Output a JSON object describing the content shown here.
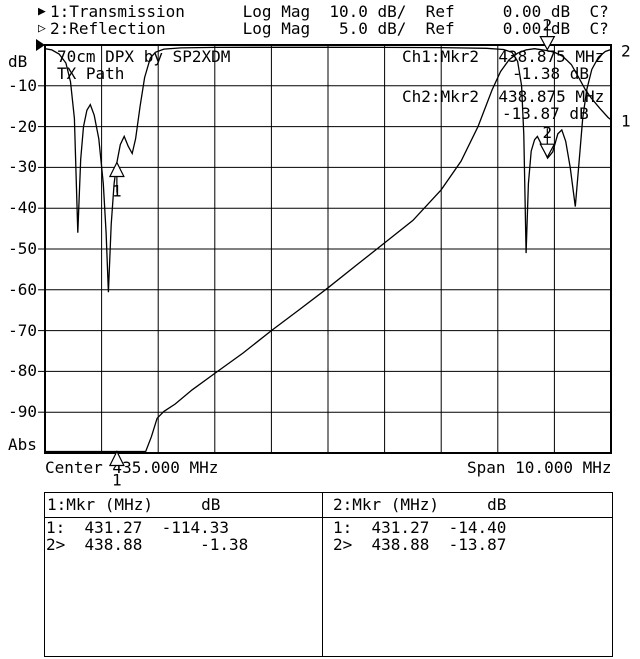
{
  "header": {
    "line1": {
      "indicator": "▶",
      "text": "1:Transmission      Log Mag  10.0 dB/  Ref     0.00 dB  C?"
    },
    "line2": {
      "indicator": "▷",
      "text": "2:Reflection        Log Mag   5.0 dB/  Ref     0.00 dB  C?"
    }
  },
  "plot": {
    "y_unit": "dB",
    "y_bottom": "Abs",
    "center_label": "Center 435.000 MHz",
    "span_label": "Span 10.000 MHz",
    "title_line1": "70cm DPX by SP2XDM",
    "title_line2": "TX Path",
    "ch1_readout_line1": "Ch1:Mkr2  438.875 MHz",
    "ch1_readout_line2": "-1.38 dB",
    "ch2_readout_line1": "Ch2:Mkr2  438.875 MHz",
    "ch2_readout_line2": "-13.87 dB"
  },
  "tables": {
    "left": {
      "header": "1:Mkr (MHz)     dB",
      "rows": [
        "1:  431.27  -114.33",
        "2>  438.88      -1.38"
      ]
    },
    "right": {
      "header": "2:Mkr (MHz)     dB",
      "rows": [
        "1:  431.27  -14.40",
        "2>  438.88  -13.87"
      ]
    }
  },
  "chart_data": {
    "type": "line",
    "title": "70cm DPX by SP2XDM",
    "subtitle": "TX Path",
    "x_axis": {
      "min": 430.0,
      "max": 440.0,
      "center_mhz": 435.0,
      "span_mhz": 10.0,
      "divisions": 10
    },
    "y_axis": {
      "unit": "dB",
      "divisions": 10,
      "tick_labels": [
        "-10",
        "-20",
        "-30",
        "-40",
        "-50",
        "-60",
        "-70",
        "-80",
        "-90"
      ],
      "bottom_label": "Abs"
    },
    "series": [
      {
        "name": "Transmission",
        "channel": 1,
        "trace_label": "1",
        "scale_db_per_div": 10,
        "ref_db": 0,
        "markers": [
          {
            "n": 1,
            "freq_mhz": 431.27,
            "db": -114.33,
            "clipped": true
          },
          {
            "n": 2,
            "freq_mhz": 438.875,
            "db": -1.38
          }
        ],
        "points": [
          [
            430.0,
            -114
          ],
          [
            431.55,
            -114
          ],
          [
            431.68,
            -110
          ],
          [
            431.78,
            -103
          ],
          [
            431.88,
            -96
          ],
          [
            431.98,
            -91.5
          ],
          [
            432.1,
            -89.8
          ],
          [
            432.3,
            -88
          ],
          [
            432.6,
            -84.5
          ],
          [
            433.0,
            -80.5
          ],
          [
            433.5,
            -75.5
          ],
          [
            434.0,
            -70
          ],
          [
            434.5,
            -64.8
          ],
          [
            435.0,
            -59.5
          ],
          [
            435.5,
            -54
          ],
          [
            436.0,
            -48.5
          ],
          [
            436.5,
            -43
          ],
          [
            437.0,
            -35.5
          ],
          [
            437.35,
            -28.5
          ],
          [
            437.65,
            -20
          ],
          [
            437.9,
            -11
          ],
          [
            438.05,
            -6.5
          ],
          [
            438.2,
            -3.6
          ],
          [
            438.35,
            -2.0
          ],
          [
            438.5,
            -1.2
          ],
          [
            438.65,
            -0.9
          ],
          [
            438.875,
            -1.38
          ],
          [
            439.0,
            -1.8
          ],
          [
            439.15,
            -2.8
          ],
          [
            439.3,
            -4.8
          ],
          [
            439.45,
            -8.5
          ],
          [
            439.55,
            -11
          ],
          [
            439.65,
            -13
          ],
          [
            439.8,
            -15.5
          ],
          [
            439.95,
            -17.8
          ],
          [
            440.0,
            -18.3
          ]
        ]
      },
      {
        "name": "Reflection",
        "channel": 2,
        "trace_label": "2",
        "scale_db_per_div": 5,
        "ref_db": 0,
        "markers": [
          {
            "n": 1,
            "freq_mhz": 431.27,
            "db": -14.4
          },
          {
            "n": 2,
            "freq_mhz": 438.875,
            "db": -13.87
          }
        ],
        "points": [
          [
            430.0,
            -0.45
          ],
          [
            430.12,
            -0.6
          ],
          [
            430.25,
            -1.1
          ],
          [
            430.37,
            -2.2
          ],
          [
            430.45,
            -4.5
          ],
          [
            430.52,
            -9
          ],
          [
            430.58,
            -23
          ],
          [
            430.63,
            -14
          ],
          [
            430.68,
            -10
          ],
          [
            430.74,
            -8
          ],
          [
            430.8,
            -7.3
          ],
          [
            430.87,
            -8.6
          ],
          [
            430.95,
            -11.5
          ],
          [
            431.03,
            -17
          ],
          [
            431.08,
            -23
          ],
          [
            431.12,
            -30.3
          ],
          [
            431.17,
            -22
          ],
          [
            431.22,
            -17
          ],
          [
            431.27,
            -14.4
          ],
          [
            431.33,
            -12.2
          ],
          [
            431.4,
            -11.2
          ],
          [
            431.47,
            -12.4
          ],
          [
            431.54,
            -13.3
          ],
          [
            431.6,
            -11.5
          ],
          [
            431.68,
            -7.5
          ],
          [
            431.76,
            -4
          ],
          [
            431.86,
            -1.6
          ],
          [
            431.95,
            -0.9
          ],
          [
            432.1,
            -0.5
          ],
          [
            432.4,
            -0.35
          ],
          [
            433.0,
            -0.3
          ],
          [
            434.0,
            -0.28
          ],
          [
            435.0,
            -0.28
          ],
          [
            436.0,
            -0.3
          ],
          [
            437.0,
            -0.32
          ],
          [
            437.8,
            -0.4
          ],
          [
            438.1,
            -0.55
          ],
          [
            438.25,
            -0.9
          ],
          [
            438.35,
            -2
          ],
          [
            438.42,
            -5
          ],
          [
            438.46,
            -11
          ],
          [
            438.5,
            -25.5
          ],
          [
            438.54,
            -17
          ],
          [
            438.59,
            -13
          ],
          [
            438.65,
            -11.6
          ],
          [
            438.7,
            -11.2
          ],
          [
            438.78,
            -12.3
          ],
          [
            438.88,
            -13.87
          ],
          [
            438.97,
            -13.1
          ],
          [
            439.06,
            -10.9
          ],
          [
            439.13,
            -10.4
          ],
          [
            439.2,
            -11.8
          ],
          [
            439.28,
            -15
          ],
          [
            439.37,
            -19.8
          ],
          [
            439.44,
            -14
          ],
          [
            439.5,
            -9
          ],
          [
            439.57,
            -5.5
          ],
          [
            439.66,
            -3
          ],
          [
            439.78,
            -1.5
          ],
          [
            439.9,
            -0.8
          ],
          [
            440.0,
            -0.55
          ]
        ]
      }
    ],
    "colors": {
      "trace": "#000000",
      "grid": "#000000",
      "background": "#ffffff"
    }
  }
}
